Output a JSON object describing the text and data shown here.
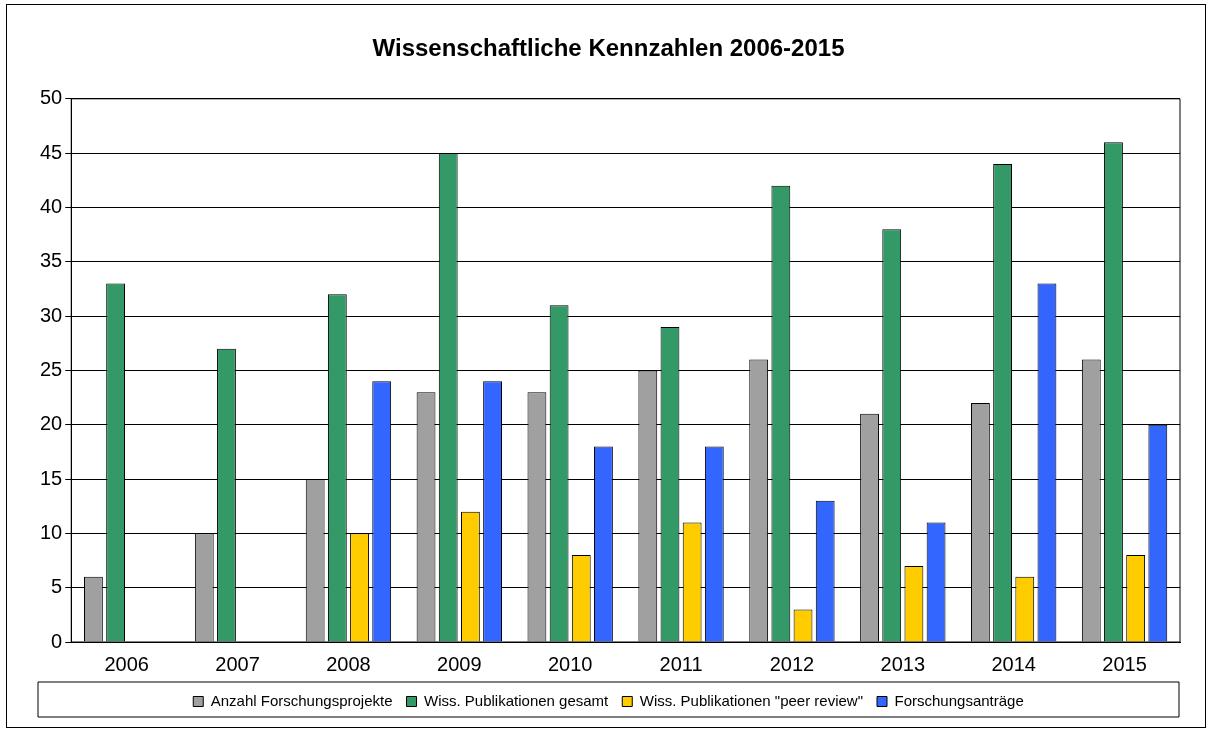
{
  "chart_data": {
    "type": "bar",
    "title": "Wissenschaftliche Kennzahlen 2006-2015",
    "categories": [
      "2006",
      "2007",
      "2008",
      "2009",
      "2010",
      "2011",
      "2012",
      "2013",
      "2014",
      "2015"
    ],
    "series": [
      {
        "name": "Anzahl Forschungsprojekte",
        "color": "#a0a0a0",
        "values": [
          6,
          10,
          15,
          23,
          23,
          25,
          26,
          21,
          22,
          26
        ]
      },
      {
        "name": "Wiss. Publikationen gesamt",
        "color": "#339966",
        "values": [
          33,
          27,
          32,
          45,
          31,
          29,
          42,
          38,
          44,
          46
        ]
      },
      {
        "name": "Wiss. Publikationen \"peer review\"",
        "color": "#ffcc00",
        "values": [
          null,
          null,
          10,
          12,
          8,
          11,
          3,
          7,
          6,
          8
        ]
      },
      {
        "name": "Forschungsanträge",
        "color": "#3366ff",
        "values": [
          null,
          null,
          24,
          24,
          18,
          18,
          13,
          11,
          33,
          20
        ]
      }
    ],
    "ylim": [
      0,
      50
    ],
    "yticks": [
      0,
      5,
      10,
      15,
      20,
      25,
      30,
      35,
      40,
      45,
      50
    ],
    "grid": "y",
    "legend": "bottom"
  }
}
